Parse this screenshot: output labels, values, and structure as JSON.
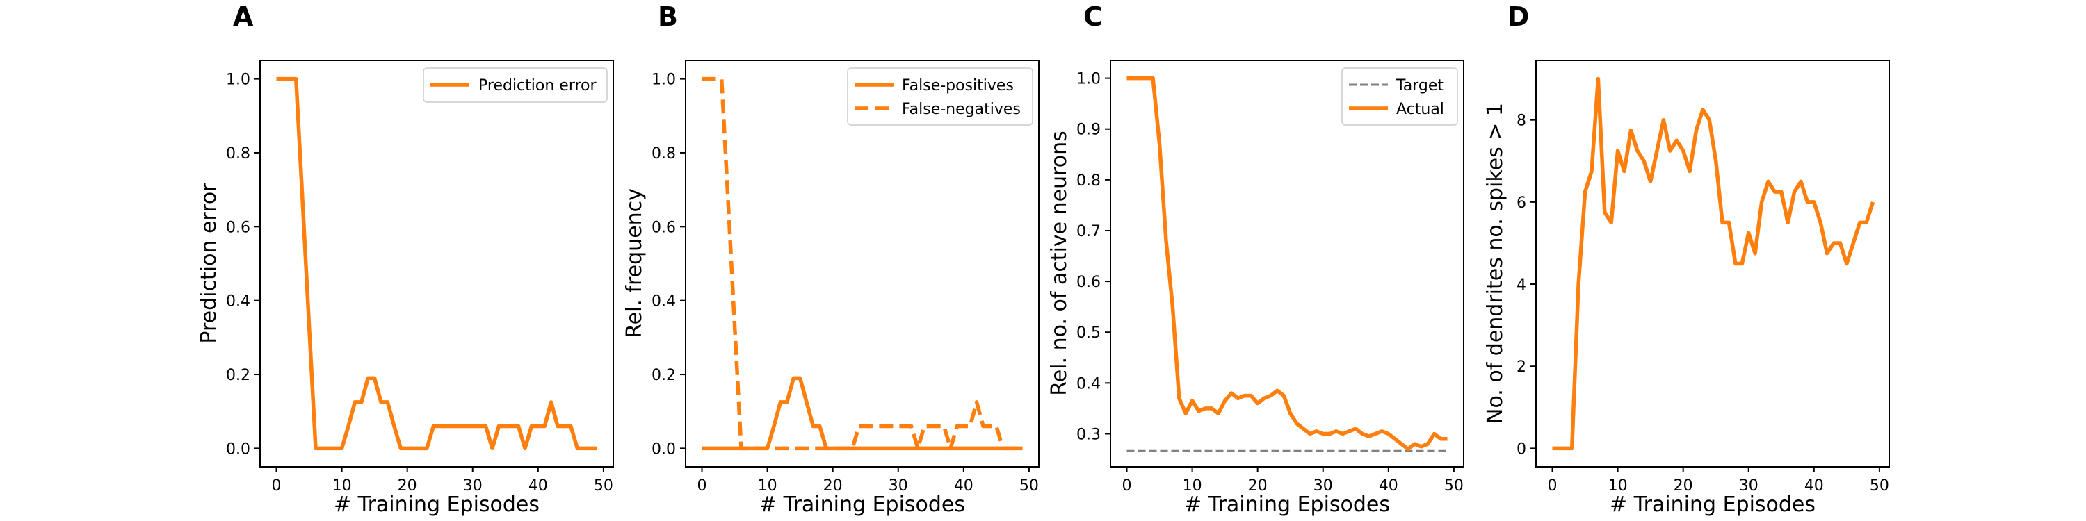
{
  "figure": {
    "line_color": "#ff7f0e",
    "target_color": "#808080"
  },
  "chart_data": [
    {
      "panel": "A",
      "type": "line",
      "xlabel": "# Training Episodes",
      "ylabel": "Prediction error",
      "xlim": [
        -2.5,
        51.5
      ],
      "ylim": [
        -0.05,
        1.05
      ],
      "xticks": [
        0,
        10,
        20,
        30,
        40,
        50
      ],
      "yticks": [
        0.0,
        0.2,
        0.4,
        0.6,
        0.8,
        1.0
      ],
      "ytick_labels": [
        "0.0",
        "0.2",
        "0.4",
        "0.6",
        "0.8",
        "1.0"
      ],
      "legend": "top-right",
      "series": [
        {
          "name": "Prediction error",
          "style": "solid",
          "color": "#ff7f0e",
          "x": [
            0,
            1,
            2,
            3,
            4,
            5,
            6,
            7,
            8,
            9,
            10,
            11,
            12,
            13,
            14,
            15,
            16,
            17,
            18,
            19,
            20,
            21,
            22,
            23,
            24,
            25,
            26,
            27,
            28,
            29,
            30,
            31,
            32,
            33,
            34,
            35,
            36,
            37,
            38,
            39,
            40,
            41,
            42,
            43,
            44,
            45,
            46,
            47,
            48,
            49
          ],
          "y": [
            1.0,
            1.0,
            1.0,
            1.0,
            0.67,
            0.33,
            0.0,
            0.0,
            0.0,
            0.0,
            0.0,
            0.06,
            0.125,
            0.125,
            0.19,
            0.19,
            0.125,
            0.125,
            0.06,
            0.0,
            0.0,
            0.0,
            0.0,
            0.0,
            0.06,
            0.06,
            0.06,
            0.06,
            0.06,
            0.06,
            0.06,
            0.06,
            0.06,
            0.0,
            0.06,
            0.06,
            0.06,
            0.06,
            0.0,
            0.06,
            0.06,
            0.06,
            0.125,
            0.06,
            0.06,
            0.06,
            0.0,
            0.0,
            0.0,
            0.0
          ]
        }
      ]
    },
    {
      "panel": "B",
      "type": "line",
      "xlabel": "# Training Episodes",
      "ylabel": "Rel. frequency",
      "xlim": [
        -2.5,
        51.5
      ],
      "ylim": [
        -0.05,
        1.05
      ],
      "xticks": [
        0,
        10,
        20,
        30,
        40,
        50
      ],
      "yticks": [
        0.0,
        0.2,
        0.4,
        0.6,
        0.8,
        1.0
      ],
      "ytick_labels": [
        "0.0",
        "0.2",
        "0.4",
        "0.6",
        "0.8",
        "1.0"
      ],
      "legend": "top-right",
      "series": [
        {
          "name": "False-positives",
          "style": "solid",
          "color": "#ff7f0e",
          "x": [
            0,
            1,
            2,
            3,
            4,
            5,
            6,
            7,
            8,
            9,
            10,
            11,
            12,
            13,
            14,
            15,
            16,
            17,
            18,
            19,
            20,
            21,
            22,
            23,
            24,
            25,
            26,
            27,
            28,
            29,
            30,
            31,
            32,
            33,
            34,
            35,
            36,
            37,
            38,
            39,
            40,
            41,
            42,
            43,
            44,
            45,
            46,
            47,
            48,
            49
          ],
          "y": [
            0,
            0,
            0,
            0,
            0,
            0,
            0,
            0,
            0,
            0,
            0,
            0.06,
            0.125,
            0.125,
            0.19,
            0.19,
            0.125,
            0.06,
            0.06,
            0,
            0,
            0,
            0,
            0,
            0,
            0,
            0,
            0,
            0,
            0,
            0,
            0,
            0,
            0,
            0,
            0,
            0,
            0,
            0,
            0,
            0,
            0,
            0,
            0,
            0,
            0,
            0,
            0,
            0,
            0
          ]
        },
        {
          "name": "False-negatives",
          "style": "dashed",
          "color": "#ff7f0e",
          "x": [
            0,
            1,
            2,
            3,
            4,
            5,
            6,
            7,
            8,
            9,
            10,
            11,
            12,
            13,
            14,
            15,
            16,
            17,
            18,
            19,
            20,
            21,
            22,
            23,
            24,
            25,
            26,
            27,
            28,
            29,
            30,
            31,
            32,
            33,
            34,
            35,
            36,
            37,
            38,
            39,
            40,
            41,
            42,
            43,
            44,
            45,
            46,
            47,
            48,
            49
          ],
          "y": [
            1.0,
            1.0,
            1.0,
            1.0,
            0.67,
            0.33,
            0.0,
            0.0,
            0.0,
            0.0,
            0.0,
            0.0,
            0.0,
            0.0,
            0.0,
            0.0,
            0.0,
            0.0,
            0.0,
            0.0,
            0.0,
            0.0,
            0.0,
            0.0,
            0.06,
            0.06,
            0.06,
            0.06,
            0.06,
            0.06,
            0.06,
            0.06,
            0.06,
            0.0,
            0.06,
            0.06,
            0.06,
            0.06,
            0.0,
            0.06,
            0.06,
            0.06,
            0.125,
            0.06,
            0.06,
            0.06,
            0.0,
            0.0,
            0.0,
            0.0
          ]
        }
      ]
    },
    {
      "panel": "C",
      "type": "line",
      "xlabel": "# Training Episodes",
      "ylabel": "Rel. no. of active neurons",
      "xlim": [
        -2.5,
        51.5
      ],
      "ylim": [
        0.235,
        1.035
      ],
      "xticks": [
        0,
        10,
        20,
        30,
        40,
        50
      ],
      "yticks": [
        0.3,
        0.4,
        0.5,
        0.6,
        0.7,
        0.8,
        0.9,
        1.0
      ],
      "ytick_labels": [
        "0.3",
        "0.4",
        "0.5",
        "0.6",
        "0.7",
        "0.8",
        "0.9",
        "1.0"
      ],
      "legend": "top-right",
      "series": [
        {
          "name": "Target",
          "style": "dashed-thin",
          "color": "#808080",
          "x": [
            0,
            49
          ],
          "y": [
            0.266,
            0.266
          ]
        },
        {
          "name": "Actual",
          "style": "solid",
          "color": "#ff7f0e",
          "x": [
            0,
            1,
            2,
            3,
            4,
            5,
            6,
            7,
            8,
            9,
            10,
            11,
            12,
            13,
            14,
            15,
            16,
            17,
            18,
            19,
            20,
            21,
            22,
            23,
            24,
            25,
            26,
            27,
            28,
            29,
            30,
            31,
            32,
            33,
            34,
            35,
            36,
            37,
            38,
            39,
            40,
            41,
            42,
            43,
            44,
            45,
            46,
            47,
            48,
            49
          ],
          "y": [
            1.0,
            1.0,
            1.0,
            1.0,
            1.0,
            0.87,
            0.68,
            0.55,
            0.37,
            0.34,
            0.365,
            0.345,
            0.35,
            0.35,
            0.34,
            0.365,
            0.38,
            0.37,
            0.375,
            0.375,
            0.36,
            0.37,
            0.375,
            0.385,
            0.375,
            0.34,
            0.32,
            0.31,
            0.3,
            0.305,
            0.3,
            0.3,
            0.305,
            0.3,
            0.305,
            0.31,
            0.3,
            0.295,
            0.3,
            0.305,
            0.3,
            0.29,
            0.28,
            0.27,
            0.28,
            0.275,
            0.28,
            0.3,
            0.29,
            0.29
          ]
        }
      ]
    },
    {
      "panel": "D",
      "type": "line",
      "xlabel": "# Training Episodes",
      "ylabel": "No. of dendrites no. spikes > 1",
      "xlim": [
        -2.5,
        51.5
      ],
      "ylim": [
        -0.45,
        9.45
      ],
      "xticks": [
        0,
        10,
        20,
        30,
        40,
        50
      ],
      "yticks": [
        0,
        2,
        4,
        6,
        8
      ],
      "ytick_labels": [
        "0",
        "2",
        "4",
        "6",
        "8"
      ],
      "legend": "",
      "series": [
        {
          "name": "",
          "style": "solid",
          "color": "#ff7f0e",
          "x": [
            0,
            1,
            2,
            3,
            4,
            5,
            6,
            7,
            8,
            9,
            10,
            11,
            12,
            13,
            14,
            15,
            16,
            17,
            18,
            19,
            20,
            21,
            22,
            23,
            24,
            25,
            26,
            27,
            28,
            29,
            30,
            31,
            32,
            33,
            34,
            35,
            36,
            37,
            38,
            39,
            40,
            41,
            42,
            43,
            44,
            45,
            46,
            47,
            48,
            49
          ],
          "y": [
            0,
            0,
            0,
            0,
            4,
            6.25,
            6.75,
            9,
            5.75,
            5.5,
            7.25,
            6.75,
            7.75,
            7.25,
            7,
            6.5,
            7.25,
            8,
            7.25,
            7.5,
            7.25,
            6.75,
            7.75,
            8.25,
            8,
            7,
            5.5,
            5.5,
            4.5,
            4.5,
            5.25,
            4.75,
            6,
            6.5,
            6.25,
            6.25,
            5.5,
            6.25,
            6.5,
            6,
            6,
            5.5,
            4.75,
            5,
            5,
            4.5,
            5,
            5.5,
            5.5,
            6
          ]
        }
      ]
    }
  ]
}
